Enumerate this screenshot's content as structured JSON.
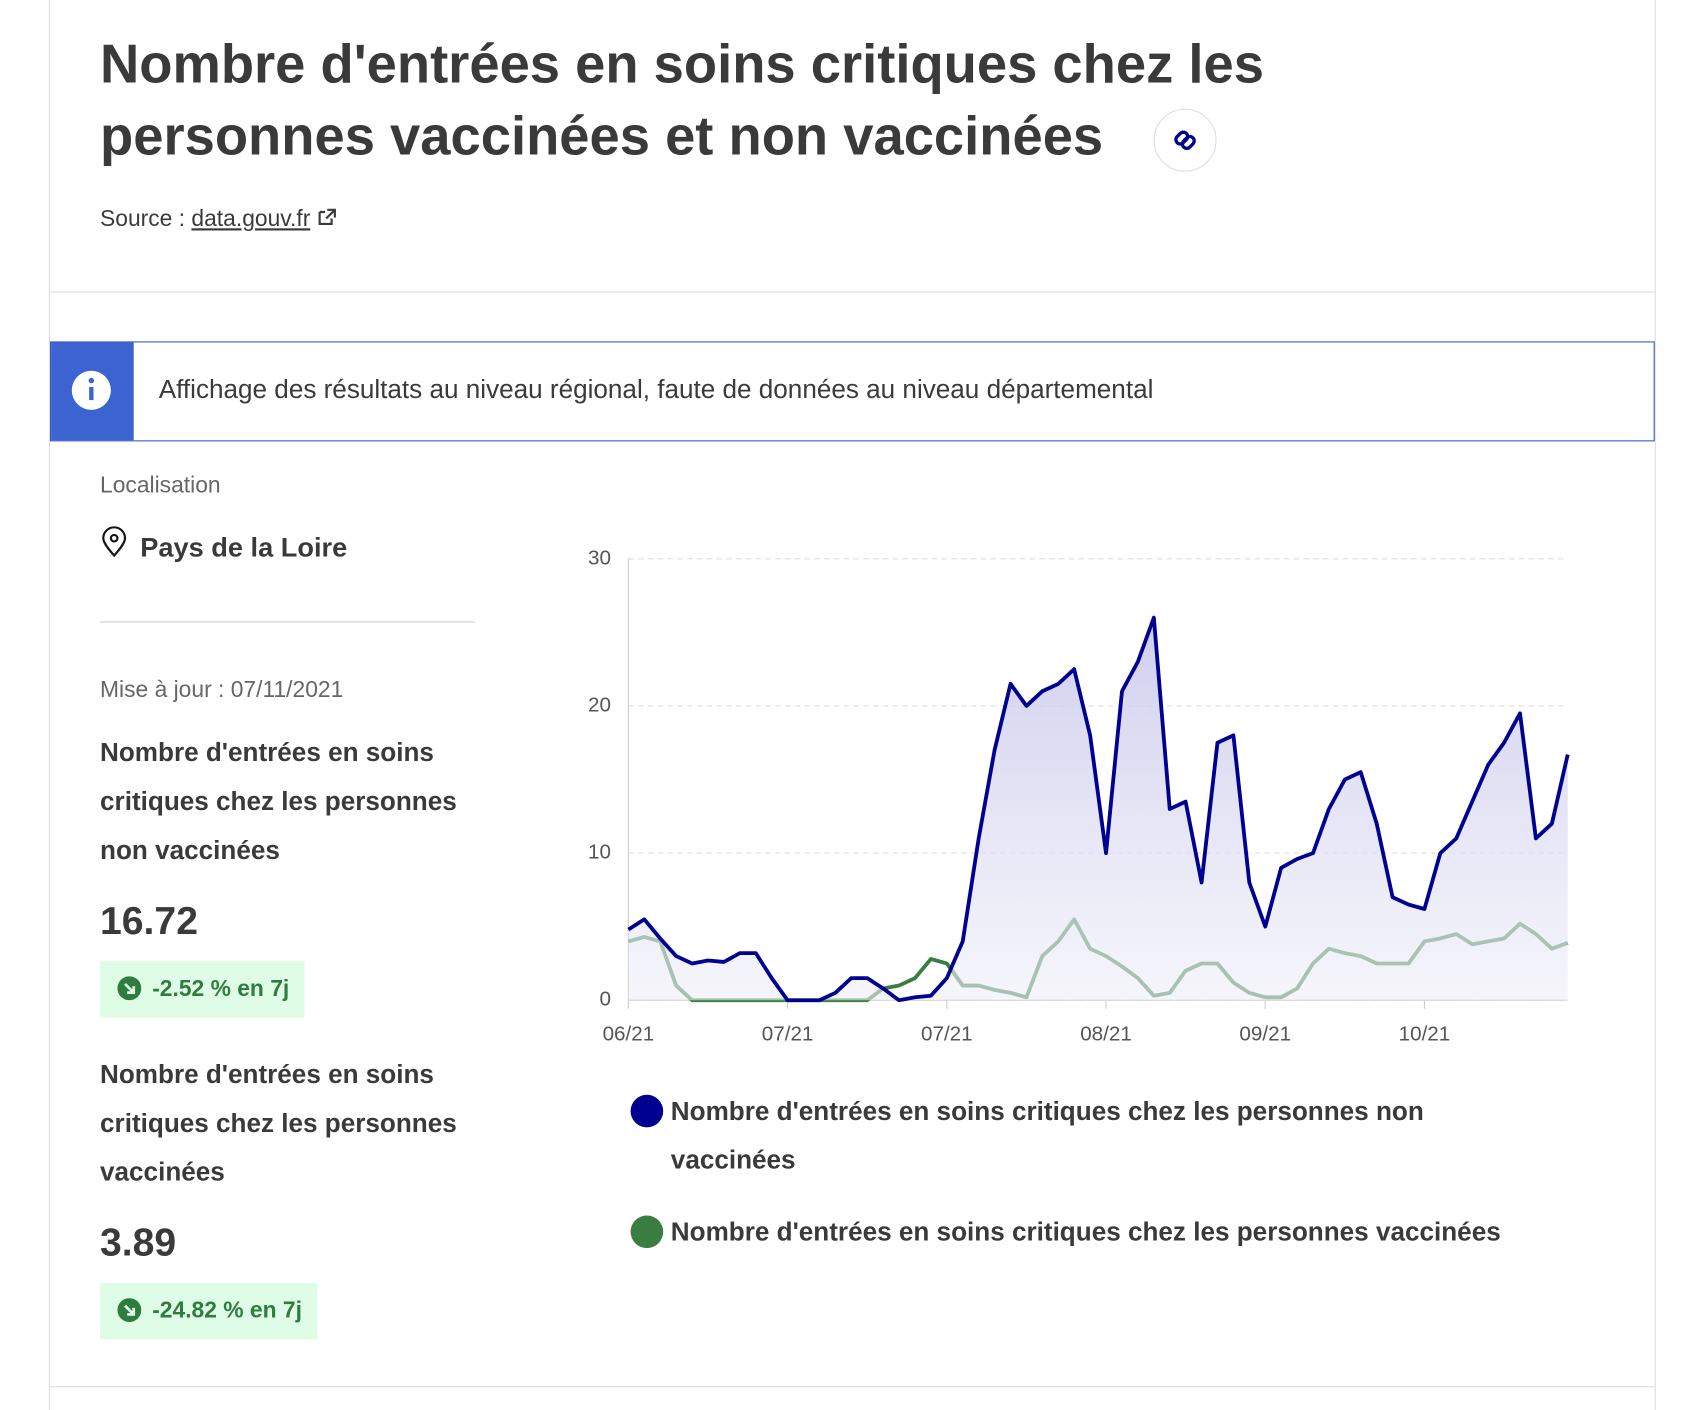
{
  "header": {
    "title": "Nombre d'entrées en soins critiques chez les personnes vaccinées et non vaccinées",
    "source_label": "Source :",
    "source_link": "data.gouv.fr"
  },
  "notice": "Affichage des résultats au niveau régional, faute de données au niveau départemental",
  "location": {
    "label": "Localisation",
    "value": "Pays de la Loire"
  },
  "updated": "Mise à jour : 07/11/2021",
  "indicators": [
    {
      "label": "Nombre d'entrées en soins critiques chez les personnes non vaccinées",
      "value": "16.72",
      "change": "-2.52 % en 7j"
    },
    {
      "label": "Nombre d'entrées en soins critiques chez les personnes vaccinées",
      "value": "3.89",
      "change": "-24.82 % en 7j"
    }
  ],
  "chart_data": {
    "type": "line",
    "x": [
      0,
      3,
      6,
      9,
      12,
      15,
      18,
      21,
      24,
      27,
      30,
      33,
      36,
      39,
      42,
      45,
      48,
      51,
      54,
      57,
      60,
      63,
      66,
      69,
      72,
      75,
      78,
      81,
      84,
      87,
      90,
      93,
      96,
      99,
      102,
      105,
      108,
      111,
      114,
      117,
      120,
      123,
      126,
      129,
      132,
      135,
      138,
      141,
      144,
      147,
      150,
      153,
      156,
      159,
      162,
      165,
      168,
      171,
      174,
      177
    ],
    "xlim": [
      0,
      177
    ],
    "xticks": [
      {
        "value": 0,
        "label": "06/21"
      },
      {
        "value": 30,
        "label": "07/21"
      },
      {
        "value": 60,
        "label": "07/21"
      },
      {
        "value": 90,
        "label": "08/21"
      },
      {
        "value": 120,
        "label": "09/21"
      },
      {
        "value": 150,
        "label": "10/21"
      }
    ],
    "ylim": [
      0,
      30
    ],
    "yticks": [
      0,
      10,
      20,
      30
    ],
    "grid": true,
    "series": [
      {
        "name": "Nombre d'entrées en soins critiques chez les personnes non vaccinées",
        "color": "#000091",
        "area": true,
        "values": [
          4.8,
          5.5,
          4.2,
          3,
          2.5,
          2.7,
          2.6,
          3.2,
          3.2,
          1.5,
          0,
          0,
          0,
          0.5,
          1.5,
          1.5,
          0.8,
          0,
          0.2,
          0.3,
          1.5,
          4,
          11,
          17,
          21.5,
          20,
          21,
          21.5,
          22.5,
          18,
          10,
          21,
          23,
          26,
          13,
          13.5,
          8,
          17.5,
          18,
          8,
          5,
          9,
          9.6,
          10,
          13,
          15,
          15.5,
          12,
          7,
          6.5,
          6.2,
          10,
          11,
          13.5,
          16,
          17.5,
          19.5,
          11,
          12,
          16.7
        ]
      },
      {
        "name": "Nombre d'entrées en soins critiques chez les personnes vaccinées",
        "color": "#3a7e3f",
        "values": [
          4,
          4.3,
          4,
          1,
          0,
          0,
          0,
          0,
          0,
          0,
          0,
          0,
          0,
          0,
          0,
          0,
          0.8,
          1,
          1.5,
          2.8,
          2.5,
          1,
          1,
          0.7,
          0.5,
          0.2,
          3,
          4,
          5.5,
          3.5,
          3,
          2.3,
          1.5,
          0.3,
          0.5,
          2,
          2.5,
          2.5,
          1.2,
          0.5,
          0.2,
          0.2,
          0.8,
          2.5,
          3.5,
          3.2,
          3,
          2.5,
          2.5,
          2.5,
          4,
          4.2,
          4.5,
          3.8,
          4,
          4.2,
          5.2,
          4.5,
          3.5,
          3.9
        ]
      }
    ]
  }
}
